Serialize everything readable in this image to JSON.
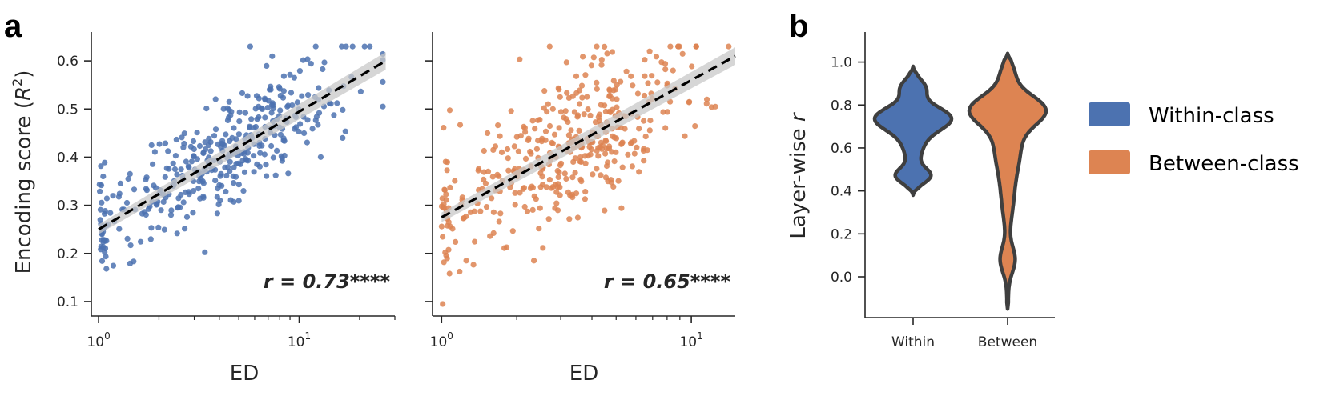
{
  "panels": {
    "a": "a",
    "b": "b"
  },
  "chart_data": [
    {
      "type": "scatter",
      "xscale": "log",
      "xlabel": "ED",
      "ylabel_text": "Encoding score (",
      "ylabel_math": "R",
      "ylabel_sup": "2",
      "ylabel_close": ")",
      "ylim": [
        0.07,
        0.66
      ],
      "xlim": [
        0.92,
        30
      ],
      "yticks": [
        "0.1",
        "0.2",
        "0.3",
        "0.4",
        "0.5",
        "0.6"
      ],
      "xticks": [
        {
          "base": "10",
          "exp": "0",
          "value": 1
        },
        {
          "base": "10",
          "exp": "1",
          "value": 10
        }
      ],
      "color": "#4c72b0",
      "fit": {
        "x_start": 1,
        "y_start": 0.25,
        "x_end": 27,
        "y_end": 0.6
      },
      "annotation": "r = 0.73****",
      "series": [
        {
          "seed": 7,
          "n": 380,
          "slope": 0.245,
          "intercept": 0.25,
          "sd": 0.055,
          "xmax": 27
        }
      ]
    },
    {
      "type": "scatter",
      "xscale": "log",
      "xlabel": "ED",
      "ylim": [
        0.07,
        0.66
      ],
      "xlim": [
        0.92,
        15
      ],
      "yticks": [
        "",
        "",
        "",
        "",
        "",
        ""
      ],
      "xticks": [
        {
          "base": "10",
          "exp": "0",
          "value": 1
        },
        {
          "base": "10",
          "exp": "1",
          "value": 10
        }
      ],
      "color": "#dd8452",
      "fit": {
        "x_start": 1,
        "y_start": 0.275,
        "x_end": 15,
        "y_end": 0.61
      },
      "annotation": "r = 0.65****",
      "series": [
        {
          "seed": 19,
          "n": 400,
          "slope": 0.285,
          "intercept": 0.275,
          "sd": 0.075,
          "xmax": 14.5
        }
      ]
    },
    {
      "type": "violin",
      "ylabel_text": "Layer-wise ",
      "ylabel_math": "r",
      "ylim": [
        -0.19,
        1.14
      ],
      "yticks": [
        "0.0",
        "0.2",
        "0.4",
        "0.6",
        "0.8",
        "1.0"
      ],
      "categories": [
        "Within",
        "Between"
      ],
      "legend": [
        {
          "label": "Within-class",
          "color": "#4c72b0"
        },
        {
          "label": "Between-class",
          "color": "#dd8452"
        }
      ],
      "violins": [
        {
          "category": "Within",
          "color": "#4c72b0",
          "ymin": 0.38,
          "ymax": 0.98,
          "components": [
            {
              "mu": 0.74,
              "sigma": 0.055,
              "w": 1.0
            },
            {
              "mu": 0.62,
              "sigma": 0.08,
              "w": 0.25
            },
            {
              "mu": 0.47,
              "sigma": 0.035,
              "w": 0.45
            },
            {
              "mu": 0.88,
              "sigma": 0.04,
              "w": 0.32
            }
          ]
        },
        {
          "category": "Between",
          "color": "#dd8452",
          "ymin": -0.15,
          "ymax": 1.04,
          "components": [
            {
              "mu": 0.78,
              "sigma": 0.07,
              "w": 1.0
            },
            {
              "mu": 0.6,
              "sigma": 0.12,
              "w": 0.35
            },
            {
              "mu": 0.35,
              "sigma": 0.1,
              "w": 0.12
            },
            {
              "mu": 0.08,
              "sigma": 0.06,
              "w": 0.2
            },
            {
              "mu": 0.95,
              "sigma": 0.05,
              "w": 0.15
            }
          ]
        }
      ]
    }
  ]
}
